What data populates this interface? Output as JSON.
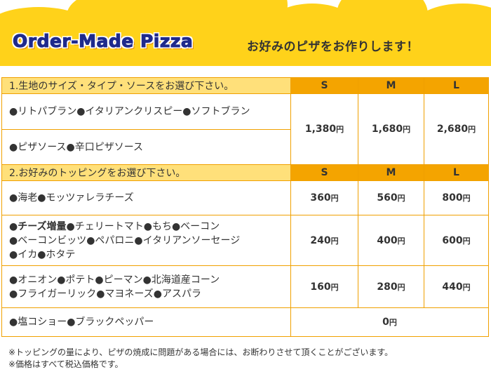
{
  "header": {
    "title_en": "Order-Made Pizza",
    "title_ja": "お好みのピザをお作りします！"
  },
  "section1": {
    "title": "1.生地のサイズ・タイプ・ソースをお選び下さい。",
    "sizes": [
      "S",
      "M",
      "L"
    ],
    "rows": [
      {
        "items": "●リトパブラン●イタリアンクリスピー●ソフトブラン"
      },
      {
        "items": "●ピザソース●辛口ピザソース"
      }
    ],
    "prices": [
      "1,380",
      "1,680",
      "2,680"
    ]
  },
  "section2": {
    "title": "2.お好みのトッピングをお選び下さい。",
    "sizes": [
      "S",
      "M",
      "L"
    ],
    "rows": [
      {
        "lines": [
          "●海老●モッツァレラチーズ"
        ],
        "prices": [
          "360",
          "560",
          "800"
        ]
      },
      {
        "lead": "●チーズ増量",
        "lines": [
          "●チェリートマト●もち●ベーコン",
          "●ベーコンビッツ●ペパロニ●イタリアンソーセージ",
          "●イカ●ホタテ"
        ],
        "prices": [
          "240",
          "400",
          "600"
        ]
      },
      {
        "lines": [
          "●オニオン●ポテト●ピーマン●北海道産コーン",
          "●フライガーリック●マヨネーズ●アスパラ"
        ],
        "prices": [
          "160",
          "280",
          "440"
        ]
      },
      {
        "lines": [
          "●塩コショー●ブラックペッパー"
        ],
        "price_all": "0"
      }
    ]
  },
  "currency": "円",
  "notes": [
    "※トッピングの量により、ピザの焼成に問題がある場合には、お断わりさせて頂くことがございます。",
    "※価格はすべて税込価格です。"
  ]
}
